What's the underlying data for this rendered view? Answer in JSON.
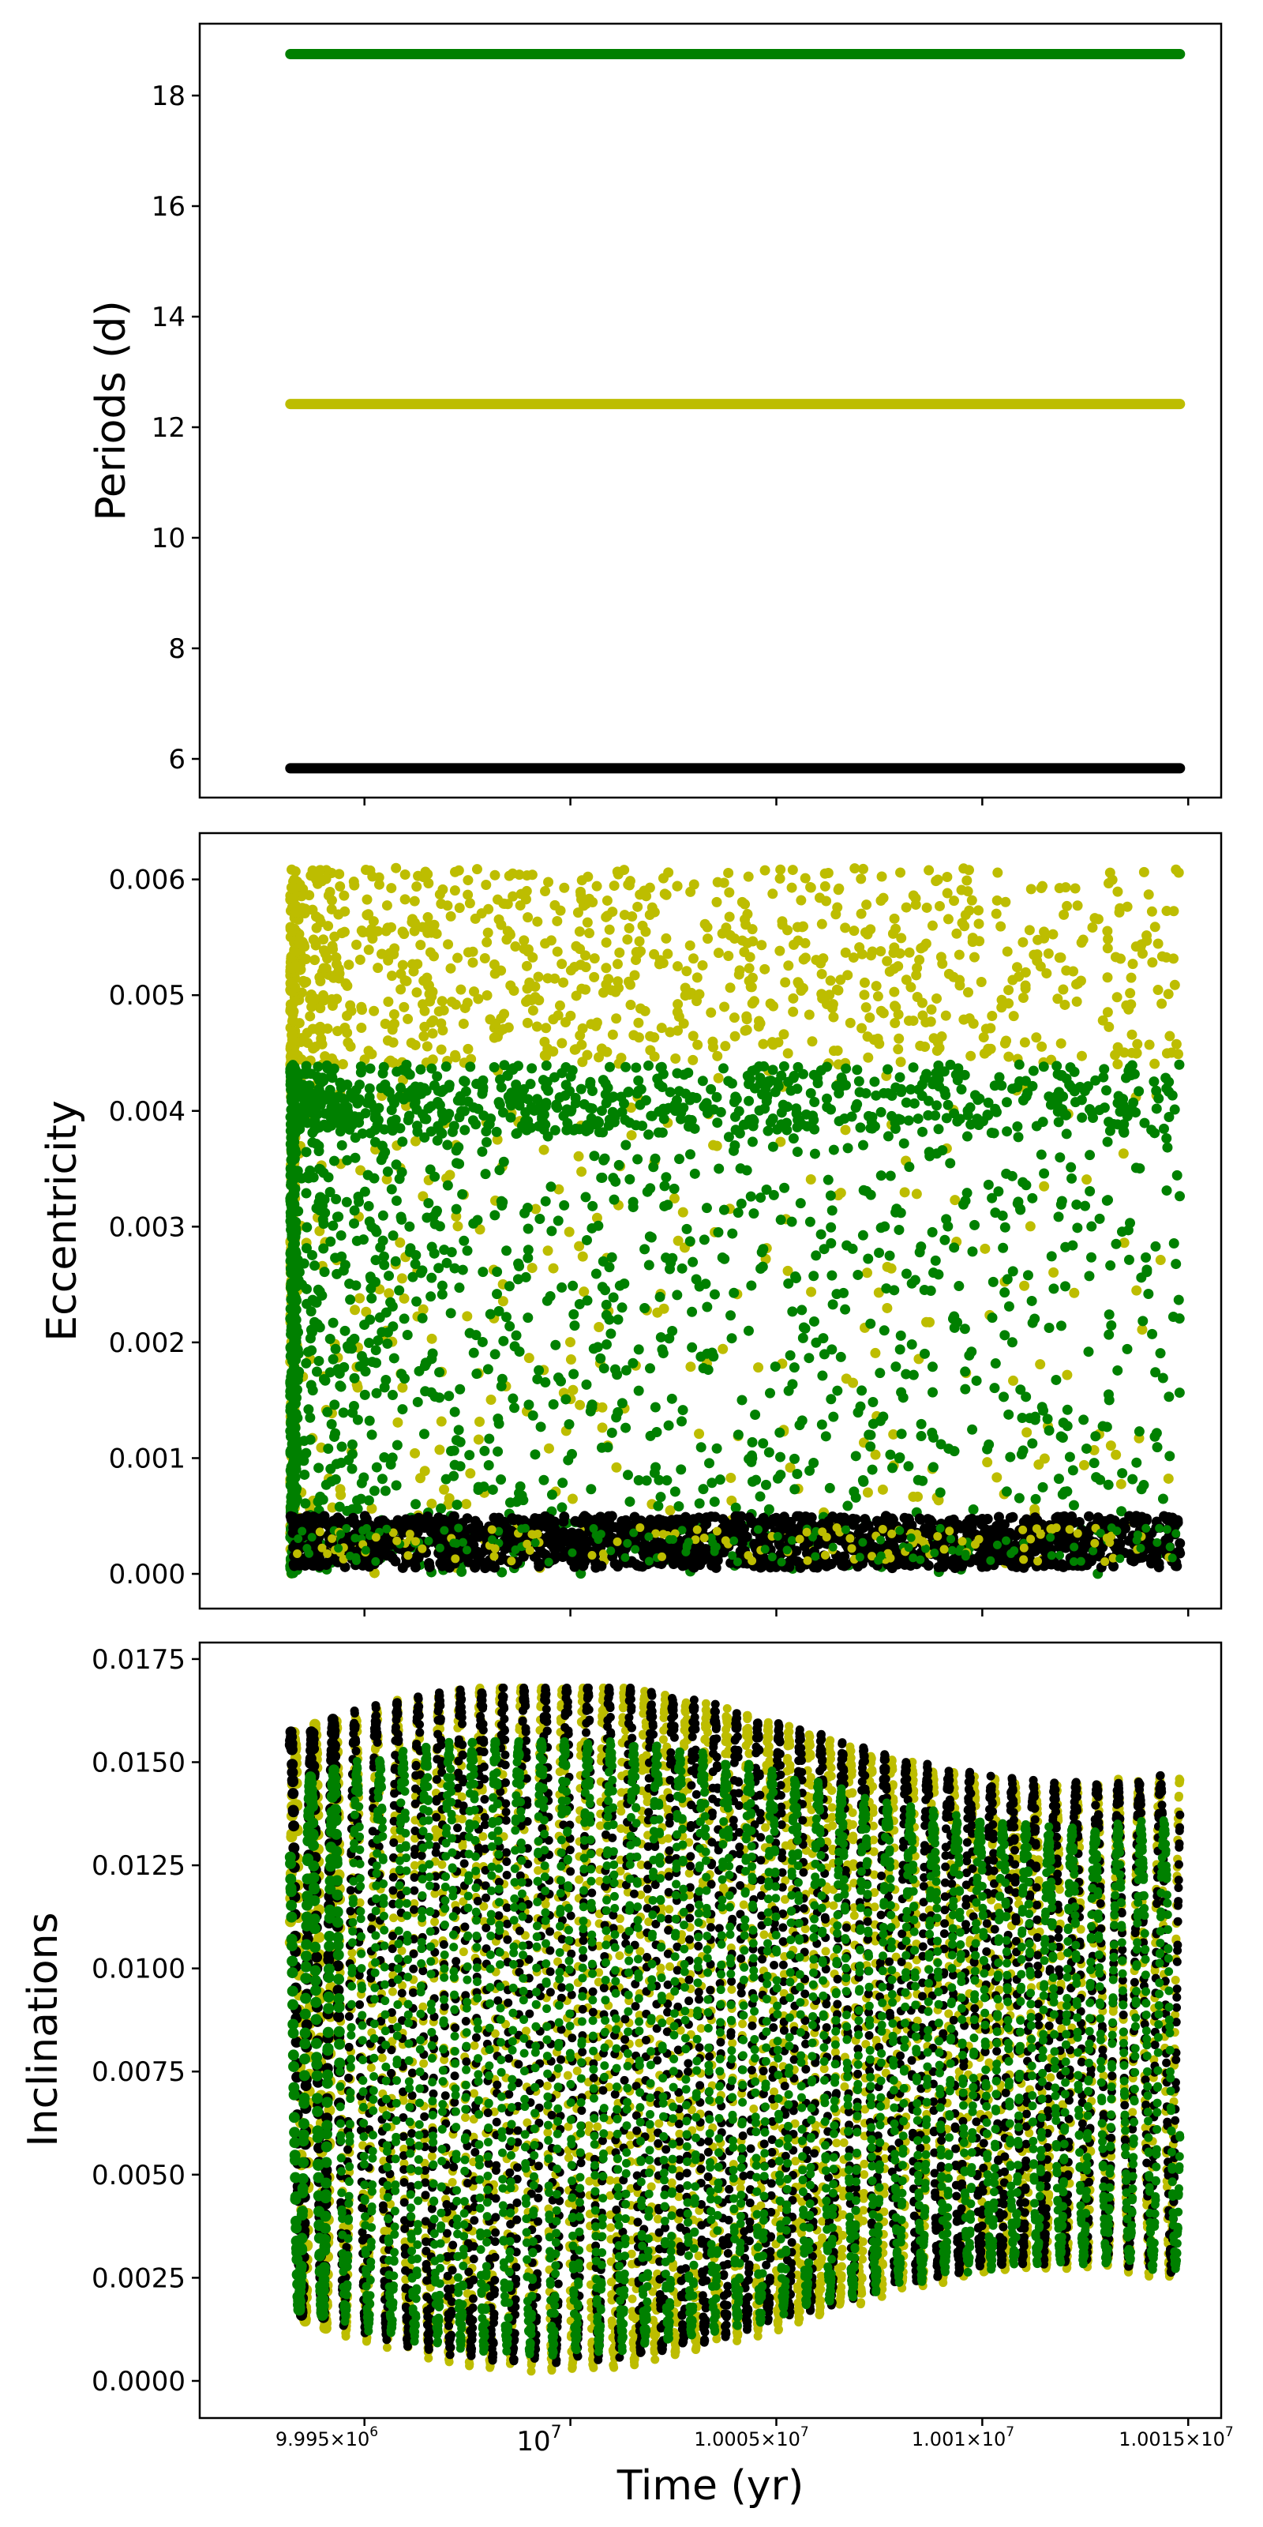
{
  "chart_data": [
    {
      "type": "scatter",
      "panel": "periods",
      "ylabel": "Periods (d)",
      "yticks": [
        "6",
        "8",
        "10",
        "12",
        "14",
        "16",
        "18"
      ],
      "ylim": [
        5.3,
        19.3
      ],
      "xlim": [
        9991000,
        10015800
      ],
      "grid": false,
      "series": [
        {
          "color": "#000000",
          "values": [
            5.83,
            5.83
          ]
        },
        {
          "color": "#bdbd00",
          "values": [
            12.42,
            12.42
          ]
        },
        {
          "color": "#008000",
          "values": [
            18.75,
            18.75
          ]
        }
      ]
    },
    {
      "type": "scatter",
      "panel": "eccentricity",
      "ylabel": "Eccentricity",
      "yticks": [
        "0.000",
        "0.001",
        "0.002",
        "0.003",
        "0.004",
        "0.005",
        "0.006"
      ],
      "ylim": [
        -0.0003,
        0.0064
      ],
      "xlim": [
        9991000,
        10015800
      ],
      "grid": false,
      "series": [
        {
          "color": "#bdbd00",
          "values": [
            0.0,
            0.0061
          ]
        },
        {
          "color": "#008000",
          "values": [
            0.0,
            0.0044
          ]
        },
        {
          "color": "#000000",
          "values": [
            5e-05,
            0.0005
          ]
        }
      ]
    },
    {
      "type": "scatter",
      "panel": "inclinations",
      "ylabel": "Inclinations",
      "xlabel": "Time (yr)",
      "yticks": [
        "0.0000",
        "0.0025",
        "0.0050",
        "0.0075",
        "0.0100",
        "0.0125",
        "0.0150",
        "0.0175"
      ],
      "ylim": [
        -0.0009,
        0.0179
      ],
      "xlim": [
        9991000,
        10015800
      ],
      "xticks": [
        "9.995×10⁶",
        "10⁷",
        "1.0005×10⁷",
        "1.001×10⁷",
        "1.0015×10⁷"
      ],
      "grid": false,
      "series": [
        {
          "color": "#000000",
          "values": [
            0.0002,
            0.0169
          ]
        },
        {
          "color": "#bdbd00",
          "values": [
            0.0001,
            0.0169
          ]
        },
        {
          "color": "#008000",
          "values": [
            0.0001,
            0.0156
          ]
        }
      ]
    }
  ],
  "labels": {
    "periods_ylabel": "Periods (d)",
    "ecc_ylabel": "Eccentricity",
    "inc_ylabel": "Inclinations",
    "xlabel": "Time (yr)",
    "xtick_1": "9.995×10",
    "xtick_1_exp": "6",
    "xtick_2": "10",
    "xtick_2_exp": "7",
    "xtick_3": "1.0005×10",
    "xtick_3_exp": "7",
    "xtick_4": "1.001×10",
    "xtick_4_exp": "7",
    "xtick_5": "1.0015×10",
    "xtick_5_exp": "7"
  }
}
